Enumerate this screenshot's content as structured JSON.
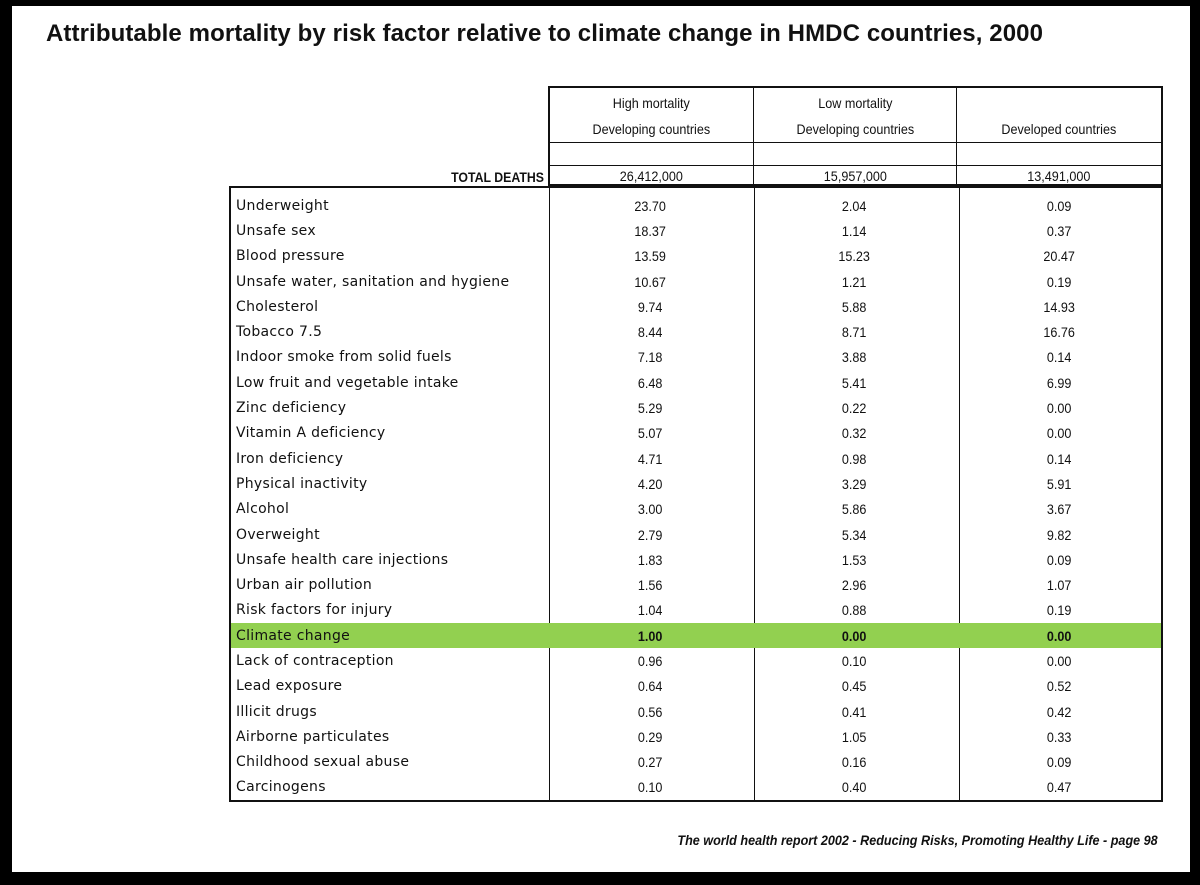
{
  "title": "Attributable mortality by risk factor relative to climate change in HMDC countries, 2000",
  "columns": [
    {
      "line1": "High mortality",
      "line2": "Developing countries",
      "total": "26,412,000"
    },
    {
      "line1": "Low mortality",
      "line2": "Developing countries",
      "total": "15,957,000"
    },
    {
      "line1": "",
      "line2": "Developed countries",
      "total": "13,491,000"
    }
  ],
  "total_label": "TOTAL DEATHS",
  "rows": [
    {
      "label": "Underweight",
      "v": [
        "23.70",
        "2.04",
        "0.09"
      ]
    },
    {
      "label": "Unsafe sex",
      "v": [
        "18.37",
        "1.14",
        "0.37"
      ]
    },
    {
      "label": "Blood pressure",
      "v": [
        "13.59",
        "15.23",
        "20.47"
      ]
    },
    {
      "label": "Unsafe water, sanitation and hygiene",
      "v": [
        "10.67",
        "1.21",
        "0.19"
      ]
    },
    {
      "label": "Cholesterol",
      "v": [
        "9.74",
        "5.88",
        "14.93"
      ]
    },
    {
      "label": "Tobacco 7.5",
      "v": [
        "8.44",
        "8.71",
        "16.76"
      ]
    },
    {
      "label": "Indoor smoke from solid fuels",
      "v": [
        "7.18",
        "3.88",
        "0.14"
      ]
    },
    {
      "label": "Low fruit and vegetable intake",
      "v": [
        "6.48",
        "5.41",
        "6.99"
      ]
    },
    {
      "label": "Zinc deficiency",
      "v": [
        "5.29",
        "0.22",
        "0.00"
      ]
    },
    {
      "label": "Vitamin A deficiency",
      "v": [
        "5.07",
        "0.32",
        "0.00"
      ]
    },
    {
      "label": "Iron deficiency",
      "v": [
        "4.71",
        "0.98",
        "0.14"
      ]
    },
    {
      "label": "Physical inactivity",
      "v": [
        "4.20",
        "3.29",
        "5.91"
      ]
    },
    {
      "label": "Alcohol",
      "v": [
        "3.00",
        "5.86",
        "3.67"
      ]
    },
    {
      "label": "Overweight",
      "v": [
        "2.79",
        "5.34",
        "9.82"
      ]
    },
    {
      "label": "Unsafe health care injections",
      "v": [
        "1.83",
        "1.53",
        "0.09"
      ]
    },
    {
      "label": "Urban air pollution",
      "v": [
        "1.56",
        "2.96",
        "1.07"
      ]
    },
    {
      "label": "Risk factors for injury",
      "v": [
        "1.04",
        "0.88",
        "0.19"
      ]
    },
    {
      "label": "Climate change",
      "v": [
        "1.00",
        "0.00",
        "0.00"
      ],
      "highlight": true
    },
    {
      "label": "Lack of contraception",
      "v": [
        "0.96",
        "0.10",
        "0.00"
      ]
    },
    {
      "label": "Lead exposure",
      "v": [
        "0.64",
        "0.45",
        "0.52"
      ]
    },
    {
      "label": "Illicit drugs",
      "v": [
        "0.56",
        "0.41",
        "0.42"
      ]
    },
    {
      "label": "Airborne particulates",
      "v": [
        "0.29",
        "1.05",
        "0.33"
      ]
    },
    {
      "label": "Childhood sexual abuse",
      "v": [
        "0.27",
        "0.16",
        "0.09"
      ]
    },
    {
      "label": "Carcinogens",
      "v": [
        "0.10",
        "0.40",
        "0.47"
      ]
    }
  ],
  "citation": "The world health report 2002 - Reducing Risks, Promoting Healthy Life - page 98",
  "colors": {
    "highlight": "#92d050",
    "background": "#ffffff",
    "frame": "#000000"
  }
}
